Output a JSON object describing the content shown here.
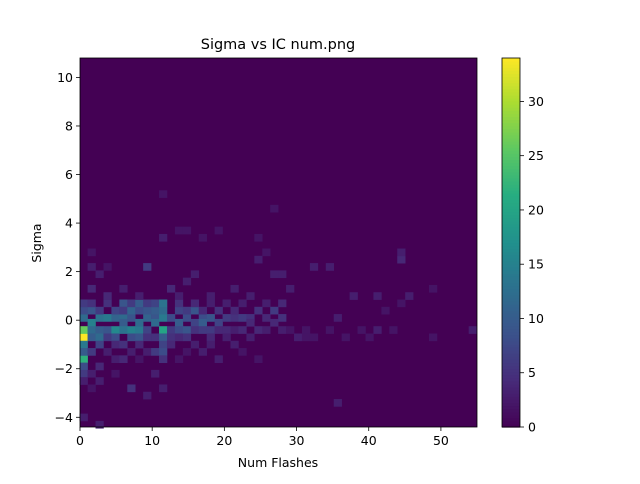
{
  "chart_data": {
    "type": "heatmap",
    "title": "Sigma vs IC num.png",
    "xlabel": "Num Flashes",
    "ylabel": "Sigma",
    "xlim": [
      0,
      55
    ],
    "ylim": [
      -4.4,
      10.8
    ],
    "x_ticks": [
      0,
      10,
      20,
      30,
      40,
      50
    ],
    "y_ticks": [
      -4,
      -2,
      0,
      2,
      4,
      6,
      8,
      10
    ],
    "x_bins": 50,
    "y_bins": 50,
    "colormap": "viridis",
    "colorbar": {
      "range": [
        0,
        34
      ],
      "ticks": [
        0,
        5,
        10,
        15,
        20,
        25,
        30
      ]
    },
    "background_color": "#440154",
    "grid": false,
    "cells": [
      {
        "x": 0.5,
        "y": -0.7,
        "count": 34
      },
      {
        "x": 0.5,
        "y": -0.4,
        "count": 26
      },
      {
        "x": 0.5,
        "y": -1.6,
        "count": 22
      },
      {
        "x": 0.5,
        "y": 0.1,
        "count": 12
      },
      {
        "x": 0.5,
        "y": 0.4,
        "count": 8
      },
      {
        "x": 0.5,
        "y": 0.7,
        "count": 6
      },
      {
        "x": 0.5,
        "y": -1.0,
        "count": 14
      },
      {
        "x": 0.5,
        "y": -1.3,
        "count": 10
      },
      {
        "x": 0.5,
        "y": -1.9,
        "count": 8
      },
      {
        "x": 0.5,
        "y": -2.2,
        "count": 6
      },
      {
        "x": 0.5,
        "y": -2.5,
        "count": 3
      },
      {
        "x": 0.5,
        "y": -4.0,
        "count": 3
      },
      {
        "x": 1.6,
        "y": -0.1,
        "count": 15
      },
      {
        "x": 1.6,
        "y": 0.4,
        "count": 9
      },
      {
        "x": 1.6,
        "y": 0.7,
        "count": 5
      },
      {
        "x": 1.6,
        "y": -0.4,
        "count": 12
      },
      {
        "x": 1.6,
        "y": -0.7,
        "count": 10
      },
      {
        "x": 1.6,
        "y": -1.3,
        "count": 6
      },
      {
        "x": 1.6,
        "y": 1.3,
        "count": 4
      },
      {
        "x": 1.6,
        "y": 2.2,
        "count": 3
      },
      {
        "x": 1.6,
        "y": 2.8,
        "count": 2
      },
      {
        "x": 1.6,
        "y": -2.2,
        "count": 3
      },
      {
        "x": 1.6,
        "y": -2.8,
        "count": 2
      },
      {
        "x": 2.7,
        "y": 0.1,
        "count": 13
      },
      {
        "x": 2.7,
        "y": -0.4,
        "count": 10
      },
      {
        "x": 2.7,
        "y": 0.4,
        "count": 6
      },
      {
        "x": 2.7,
        "y": -0.7,
        "count": 12
      },
      {
        "x": 2.7,
        "y": -1.0,
        "count": 7
      },
      {
        "x": 2.7,
        "y": 1.9,
        "count": 3
      },
      {
        "x": 2.7,
        "y": -1.9,
        "count": 4
      },
      {
        "x": 2.7,
        "y": -2.5,
        "count": 3
      },
      {
        "x": 2.7,
        "y": -4.3,
        "count": 3
      },
      {
        "x": 3.8,
        "y": 0.1,
        "count": 14
      },
      {
        "x": 3.8,
        "y": -0.4,
        "count": 9
      },
      {
        "x": 3.8,
        "y": 0.7,
        "count": 5
      },
      {
        "x": 3.8,
        "y": -0.7,
        "count": 6
      },
      {
        "x": 3.8,
        "y": 1.0,
        "count": 4
      },
      {
        "x": 3.8,
        "y": -1.3,
        "count": 3
      },
      {
        "x": 3.8,
        "y": 2.2,
        "count": 2
      },
      {
        "x": 4.9,
        "y": 0.1,
        "count": 11
      },
      {
        "x": 4.9,
        "y": -0.4,
        "count": 16
      },
      {
        "x": 4.9,
        "y": -0.7,
        "count": 8
      },
      {
        "x": 4.9,
        "y": 0.4,
        "count": 7
      },
      {
        "x": 4.9,
        "y": -1.0,
        "count": 4
      },
      {
        "x": 4.9,
        "y": -1.6,
        "count": 3
      },
      {
        "x": 4.9,
        "y": -2.2,
        "count": 2
      },
      {
        "x": 6.0,
        "y": 0.1,
        "count": 12
      },
      {
        "x": 6.0,
        "y": -0.1,
        "count": 10
      },
      {
        "x": 6.0,
        "y": -0.4,
        "count": 13
      },
      {
        "x": 6.0,
        "y": 0.7,
        "count": 9
      },
      {
        "x": 6.0,
        "y": 0.4,
        "count": 6
      },
      {
        "x": 6.0,
        "y": -1.0,
        "count": 5
      },
      {
        "x": 6.0,
        "y": -1.6,
        "count": 4
      },
      {
        "x": 6.0,
        "y": 1.3,
        "count": 3
      },
      {
        "x": 7.1,
        "y": -0.4,
        "count": 15
      },
      {
        "x": 7.1,
        "y": 0.1,
        "count": 9
      },
      {
        "x": 7.1,
        "y": 0.4,
        "count": 11
      },
      {
        "x": 7.1,
        "y": 0.7,
        "count": 6
      },
      {
        "x": 7.1,
        "y": -0.7,
        "count": 8
      },
      {
        "x": 7.1,
        "y": -1.3,
        "count": 3
      },
      {
        "x": 7.1,
        "y": -2.8,
        "count": 5
      },
      {
        "x": 8.2,
        "y": -0.4,
        "count": 14
      },
      {
        "x": 8.2,
        "y": -0.1,
        "count": 12
      },
      {
        "x": 8.2,
        "y": 0.4,
        "count": 8
      },
      {
        "x": 8.2,
        "y": 0.7,
        "count": 10
      },
      {
        "x": 8.2,
        "y": -0.7,
        "count": 9
      },
      {
        "x": 8.2,
        "y": -1.0,
        "count": 4
      },
      {
        "x": 8.2,
        "y": 1.0,
        "count": 3
      },
      {
        "x": 8.2,
        "y": -1.6,
        "count": 2
      },
      {
        "x": 9.3,
        "y": 0.1,
        "count": 11
      },
      {
        "x": 9.3,
        "y": -0.4,
        "count": 7
      },
      {
        "x": 9.3,
        "y": 0.4,
        "count": 9
      },
      {
        "x": 9.3,
        "y": 0.7,
        "count": 6
      },
      {
        "x": 9.3,
        "y": -0.7,
        "count": 5
      },
      {
        "x": 9.3,
        "y": 2.2,
        "count": 6
      },
      {
        "x": 9.3,
        "y": -1.3,
        "count": 3
      },
      {
        "x": 9.3,
        "y": -3.1,
        "count": 3
      },
      {
        "x": 10.4,
        "y": 0.1,
        "count": 9
      },
      {
        "x": 10.4,
        "y": -0.1,
        "count": 12
      },
      {
        "x": 10.4,
        "y": 0.4,
        "count": 10
      },
      {
        "x": 10.4,
        "y": 0.7,
        "count": 7
      },
      {
        "x": 10.4,
        "y": -0.7,
        "count": 5
      },
      {
        "x": 10.4,
        "y": -1.3,
        "count": 6
      },
      {
        "x": 10.4,
        "y": -2.2,
        "count": 3
      },
      {
        "x": 11.5,
        "y": -0.4,
        "count": 20
      },
      {
        "x": 11.5,
        "y": 0.1,
        "count": 14
      },
      {
        "x": 11.5,
        "y": 0.4,
        "count": 12
      },
      {
        "x": 11.5,
        "y": 0.7,
        "count": 13
      },
      {
        "x": 11.5,
        "y": -0.7,
        "count": 10
      },
      {
        "x": 11.5,
        "y": -1.0,
        "count": 7
      },
      {
        "x": 11.5,
        "y": -1.3,
        "count": 8
      },
      {
        "x": 11.5,
        "y": -1.6,
        "count": 5
      },
      {
        "x": 11.5,
        "y": -2.8,
        "count": 3
      },
      {
        "x": 11.5,
        "y": 3.4,
        "count": 3
      },
      {
        "x": 11.5,
        "y": 5.2,
        "count": 2
      },
      {
        "x": 12.6,
        "y": 0.1,
        "count": 8
      },
      {
        "x": 12.6,
        "y": -0.4,
        "count": 6
      },
      {
        "x": 12.6,
        "y": -0.7,
        "count": 5
      },
      {
        "x": 12.6,
        "y": 1.3,
        "count": 4
      },
      {
        "x": 12.6,
        "y": -1.0,
        "count": 4
      },
      {
        "x": 13.7,
        "y": -0.1,
        "count": 10
      },
      {
        "x": 13.7,
        "y": 0.4,
        "count": 7
      },
      {
        "x": 13.7,
        "y": -0.4,
        "count": 8
      },
      {
        "x": 13.7,
        "y": 0.7,
        "count": 5
      },
      {
        "x": 13.7,
        "y": -0.7,
        "count": 4
      },
      {
        "x": 13.7,
        "y": 1.0,
        "count": 3
      },
      {
        "x": 13.7,
        "y": 3.7,
        "count": 2
      },
      {
        "x": 13.7,
        "y": -1.6,
        "count": 2
      },
      {
        "x": 14.8,
        "y": 0.1,
        "count": 8
      },
      {
        "x": 14.8,
        "y": -0.4,
        "count": 9
      },
      {
        "x": 14.8,
        "y": 0.4,
        "count": 6
      },
      {
        "x": 14.8,
        "y": -0.7,
        "count": 5
      },
      {
        "x": 14.8,
        "y": 3.7,
        "count": 2
      },
      {
        "x": 14.8,
        "y": 1.6,
        "count": 3
      },
      {
        "x": 14.8,
        "y": -1.3,
        "count": 2
      },
      {
        "x": 15.9,
        "y": -0.1,
        "count": 7
      },
      {
        "x": 15.9,
        "y": 0.4,
        "count": 9
      },
      {
        "x": 15.9,
        "y": -0.4,
        "count": 5
      },
      {
        "x": 15.9,
        "y": 0.7,
        "count": 4
      },
      {
        "x": 15.9,
        "y": 1.9,
        "count": 3
      },
      {
        "x": 15.9,
        "y": -1.0,
        "count": 3
      },
      {
        "x": 17.0,
        "y": 0.1,
        "count": 8
      },
      {
        "x": 17.0,
        "y": -0.1,
        "count": 10
      },
      {
        "x": 17.0,
        "y": -0.4,
        "count": 6
      },
      {
        "x": 17.0,
        "y": 0.4,
        "count": 4
      },
      {
        "x": 17.0,
        "y": 3.4,
        "count": 2
      },
      {
        "x": 17.0,
        "y": -1.3,
        "count": 3
      },
      {
        "x": 18.1,
        "y": 0.1,
        "count": 9
      },
      {
        "x": 18.1,
        "y": -0.4,
        "count": 6
      },
      {
        "x": 18.1,
        "y": -0.7,
        "count": 4
      },
      {
        "x": 18.1,
        "y": 0.7,
        "count": 3
      },
      {
        "x": 18.1,
        "y": 1.0,
        "count": 3
      },
      {
        "x": 18.1,
        "y": -1.0,
        "count": 3
      },
      {
        "x": 19.2,
        "y": -0.1,
        "count": 7
      },
      {
        "x": 19.2,
        "y": 0.4,
        "count": 5
      },
      {
        "x": 19.2,
        "y": -0.4,
        "count": 4
      },
      {
        "x": 19.2,
        "y": 3.7,
        "count": 2
      },
      {
        "x": 19.2,
        "y": -1.6,
        "count": 3
      },
      {
        "x": 20.3,
        "y": 0.1,
        "count": 6
      },
      {
        "x": 20.3,
        "y": -0.4,
        "count": 4
      },
      {
        "x": 20.3,
        "y": 0.7,
        "count": 3
      },
      {
        "x": 20.3,
        "y": -0.7,
        "count": 3
      },
      {
        "x": 21.4,
        "y": 0.1,
        "count": 5
      },
      {
        "x": 21.4,
        "y": 0.4,
        "count": 4
      },
      {
        "x": 21.4,
        "y": -0.4,
        "count": 3
      },
      {
        "x": 21.4,
        "y": 1.3,
        "count": 3
      },
      {
        "x": 21.4,
        "y": -1.0,
        "count": 3
      },
      {
        "x": 22.5,
        "y": 0.1,
        "count": 6
      },
      {
        "x": 22.5,
        "y": -0.4,
        "count": 4
      },
      {
        "x": 22.5,
        "y": 0.7,
        "count": 3
      },
      {
        "x": 22.5,
        "y": -1.3,
        "count": 2
      },
      {
        "x": 23.6,
        "y": 0.1,
        "count": 5
      },
      {
        "x": 23.6,
        "y": -0.1,
        "count": 4
      },
      {
        "x": 23.6,
        "y": 1.0,
        "count": 3
      },
      {
        "x": 23.6,
        "y": -0.7,
        "count": 3
      },
      {
        "x": 24.7,
        "y": 0.4,
        "count": 5
      },
      {
        "x": 24.7,
        "y": -0.4,
        "count": 4
      },
      {
        "x": 24.7,
        "y": 2.5,
        "count": 3
      },
      {
        "x": 24.7,
        "y": -1.6,
        "count": 2
      },
      {
        "x": 24.7,
        "y": 3.4,
        "count": 2
      },
      {
        "x": 25.8,
        "y": 0.1,
        "count": 4
      },
      {
        "x": 25.8,
        "y": 0.7,
        "count": 3
      },
      {
        "x": 25.8,
        "y": -0.4,
        "count": 3
      },
      {
        "x": 25.8,
        "y": 2.8,
        "count": 2
      },
      {
        "x": 26.9,
        "y": 0.4,
        "count": 6
      },
      {
        "x": 26.9,
        "y": -0.1,
        "count": 4
      },
      {
        "x": 26.9,
        "y": 4.6,
        "count": 2
      },
      {
        "x": 26.9,
        "y": 1.9,
        "count": 3
      },
      {
        "x": 28.0,
        "y": 0.7,
        "count": 4
      },
      {
        "x": 28.0,
        "y": 0.1,
        "count": 5
      },
      {
        "x": 28.0,
        "y": -0.4,
        "count": 3
      },
      {
        "x": 28.0,
        "y": 1.9,
        "count": 3
      },
      {
        "x": 29.1,
        "y": -0.4,
        "count": 2
      },
      {
        "x": 29.1,
        "y": 1.3,
        "count": 3
      },
      {
        "x": 30.2,
        "y": -0.7,
        "count": 3
      },
      {
        "x": 31.3,
        "y": -0.4,
        "count": 2
      },
      {
        "x": 31.3,
        "y": -0.7,
        "count": 2
      },
      {
        "x": 32.4,
        "y": 2.2,
        "count": 3
      },
      {
        "x": 32.4,
        "y": -0.7,
        "count": 2
      },
      {
        "x": 34.6,
        "y": 2.2,
        "count": 3
      },
      {
        "x": 34.6,
        "y": -0.4,
        "count": 2
      },
      {
        "x": 35.7,
        "y": 0.1,
        "count": 3
      },
      {
        "x": 35.7,
        "y": -3.4,
        "count": 3
      },
      {
        "x": 36.8,
        "y": -0.7,
        "count": 2
      },
      {
        "x": 37.9,
        "y": 1.0,
        "count": 3
      },
      {
        "x": 39.0,
        "y": -0.4,
        "count": 2
      },
      {
        "x": 40.1,
        "y": -0.7,
        "count": 2
      },
      {
        "x": 41.2,
        "y": 1.0,
        "count": 3
      },
      {
        "x": 41.2,
        "y": -0.4,
        "count": 3
      },
      {
        "x": 42.3,
        "y": 0.4,
        "count": 2
      },
      {
        "x": 43.4,
        "y": -0.4,
        "count": 2
      },
      {
        "x": 44.5,
        "y": 2.5,
        "count": 4
      },
      {
        "x": 44.5,
        "y": 2.8,
        "count": 3
      },
      {
        "x": 44.5,
        "y": 0.7,
        "count": 2
      },
      {
        "x": 45.6,
        "y": 1.0,
        "count": 3
      },
      {
        "x": 48.9,
        "y": 1.3,
        "count": 2
      },
      {
        "x": 48.9,
        "y": -0.7,
        "count": 2
      },
      {
        "x": 54.4,
        "y": -0.4,
        "count": 3
      }
    ]
  }
}
